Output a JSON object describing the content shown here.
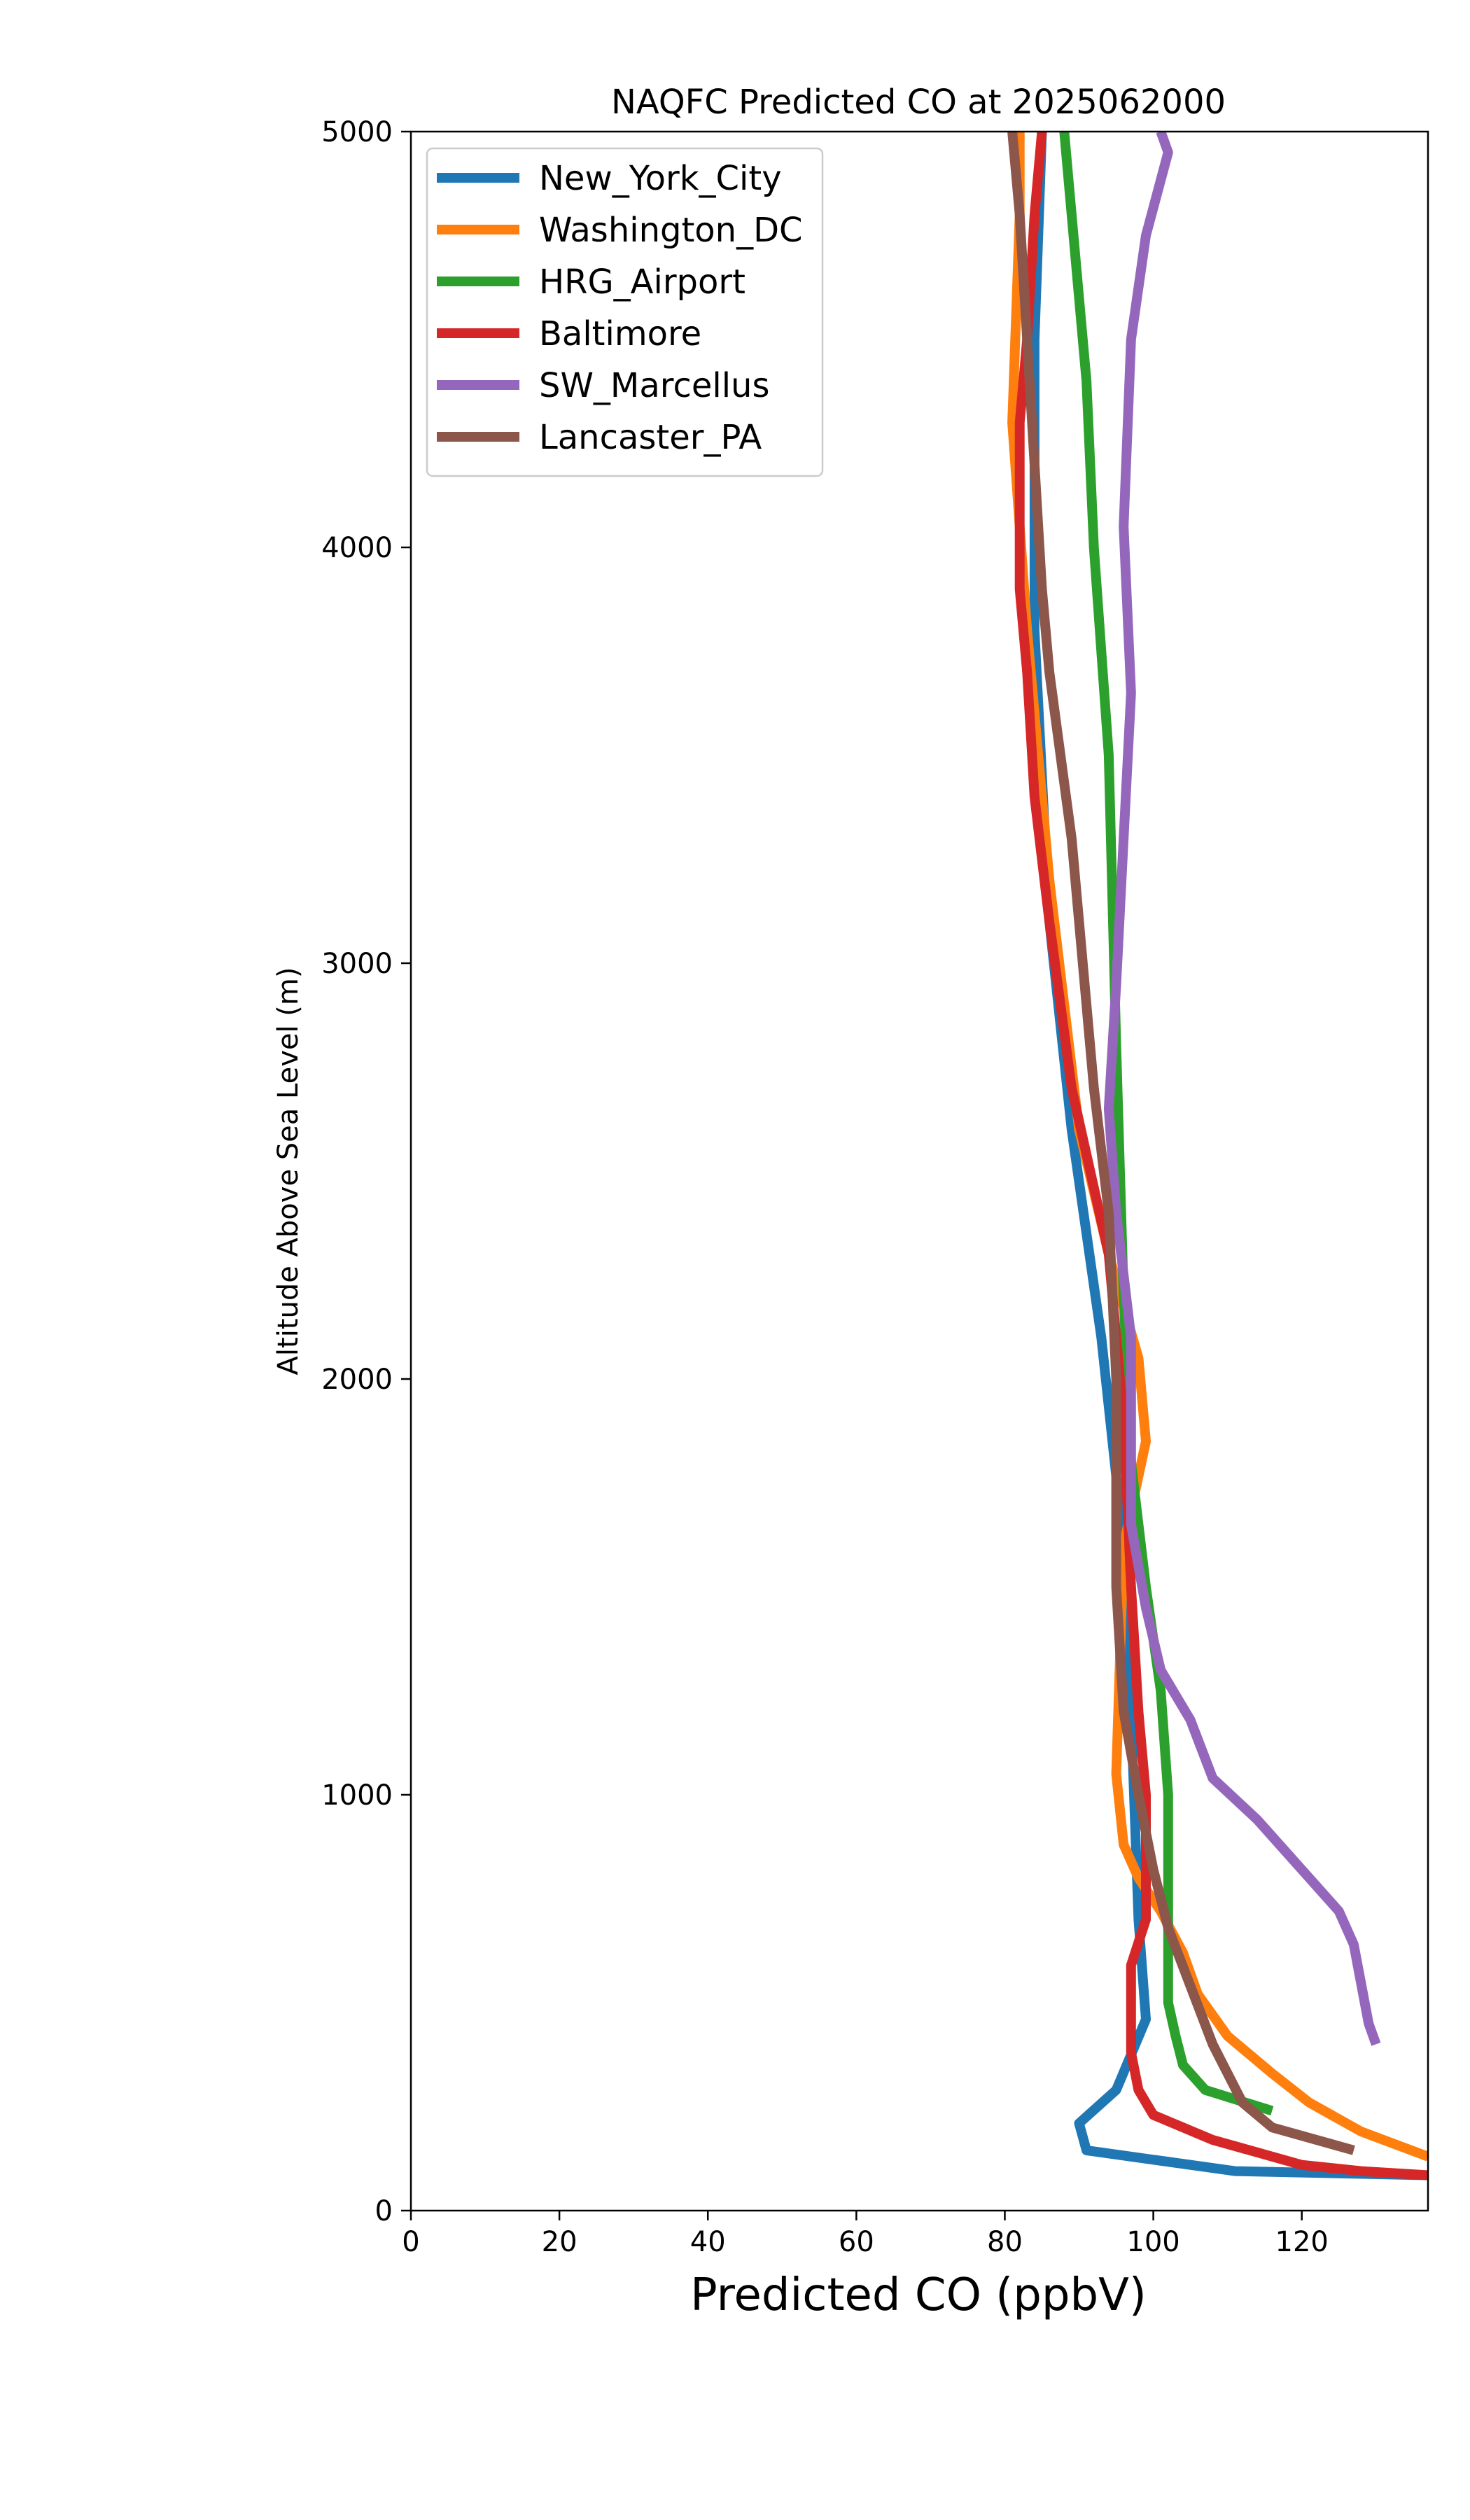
{
  "chart_data": {
    "type": "line",
    "title": "NAQFC Predicted CO at 2025062000",
    "xlabel": "Predicted CO (ppbV)",
    "ylabel": "Altitude Above Sea Level (m)",
    "xlim": [
      0,
      137
    ],
    "ylim": [
      0,
      5000
    ],
    "xticks": [
      0,
      20,
      40,
      60,
      80,
      100,
      120
    ],
    "yticks": [
      0,
      1000,
      2000,
      3000,
      4000,
      5000
    ],
    "grid": false,
    "legend_position": "top-left",
    "series": [
      {
        "name": "New_York_City",
        "color": "#1f77b4",
        "points": [
          [
            137,
            85
          ],
          [
            111,
            95
          ],
          [
            91,
            145
          ],
          [
            90,
            210
          ],
          [
            95,
            290
          ],
          [
            99,
            460
          ],
          [
            98,
            700
          ],
          [
            97,
            1200
          ],
          [
            96,
            1600
          ],
          [
            93,
            2100
          ],
          [
            89,
            2600
          ],
          [
            86,
            3100
          ],
          [
            84,
            3800
          ],
          [
            84,
            4500
          ],
          [
            85,
            5000
          ]
        ]
      },
      {
        "name": "Washington_DC",
        "color": "#ff7f0e",
        "points": [
          [
            137,
            130
          ],
          [
            128,
            190
          ],
          [
            121,
            260
          ],
          [
            116,
            330
          ],
          [
            110,
            420
          ],
          [
            106,
            520
          ],
          [
            104,
            620
          ],
          [
            101,
            720
          ],
          [
            98,
            800
          ],
          [
            96,
            880
          ],
          [
            95,
            1050
          ],
          [
            96,
            1600
          ],
          [
            99,
            1850
          ],
          [
            98,
            2050
          ],
          [
            94,
            2300
          ],
          [
            90,
            2600
          ],
          [
            86,
            3200
          ],
          [
            83,
            3800
          ],
          [
            81,
            4300
          ],
          [
            82,
            4800
          ],
          [
            82,
            5000
          ]
        ]
      },
      {
        "name": "HRG_Airport",
        "color": "#2ca02c",
        "points": [
          [
            116,
            240
          ],
          [
            107,
            290
          ],
          [
            104,
            350
          ],
          [
            103,
            420
          ],
          [
            102,
            500
          ],
          [
            102,
            700
          ],
          [
            102,
            1000
          ],
          [
            101,
            1250
          ],
          [
            99,
            1500
          ],
          [
            97,
            1800
          ],
          [
            96,
            2200
          ],
          [
            95,
            2800
          ],
          [
            94,
            3500
          ],
          [
            92,
            4000
          ],
          [
            91,
            4400
          ],
          [
            89,
            4800
          ],
          [
            88,
            5000
          ]
        ]
      },
      {
        "name": "Baltimore",
        "color": "#d62728",
        "points": [
          [
            137,
            85
          ],
          [
            128,
            95
          ],
          [
            120,
            110
          ],
          [
            108,
            170
          ],
          [
            100,
            230
          ],
          [
            98,
            290
          ],
          [
            97,
            380
          ],
          [
            97,
            480
          ],
          [
            97,
            590
          ],
          [
            99,
            700
          ],
          [
            99,
            850
          ],
          [
            99,
            1000
          ],
          [
            98,
            1200
          ],
          [
            97,
            1500
          ],
          [
            96,
            1900
          ],
          [
            94,
            2300
          ],
          [
            89,
            2700
          ],
          [
            86,
            3100
          ],
          [
            84,
            3400
          ],
          [
            83,
            3700
          ],
          [
            82,
            3900
          ],
          [
            82,
            4300
          ],
          [
            83,
            4500
          ],
          [
            84,
            4800
          ],
          [
            85,
            5000
          ]
        ]
      },
      {
        "name": "SW_Marcellus",
        "color": "#9467bd",
        "points": [
          [
            130,
            400
          ],
          [
            129,
            450
          ],
          [
            127,
            640
          ],
          [
            125,
            720
          ],
          [
            120,
            820
          ],
          [
            114,
            940
          ],
          [
            108,
            1040
          ],
          [
            105,
            1180
          ],
          [
            101,
            1300
          ],
          [
            99,
            1450
          ],
          [
            97,
            1650
          ],
          [
            97,
            1900
          ],
          [
            97,
            2100
          ],
          [
            95,
            2400
          ],
          [
            94,
            2650
          ],
          [
            95,
            2950
          ],
          [
            96,
            3300
          ],
          [
            97,
            3650
          ],
          [
            96,
            4050
          ],
          [
            97,
            4500
          ],
          [
            99,
            4750
          ],
          [
            102,
            4950
          ],
          [
            101,
            5000
          ]
        ]
      },
      {
        "name": "Lancaster_PA",
        "color": "#8c564b",
        "points": [
          [
            127,
            145
          ],
          [
            116,
            200
          ],
          [
            112,
            260
          ],
          [
            108,
            400
          ],
          [
            105,
            540
          ],
          [
            102,
            680
          ],
          [
            100,
            820
          ],
          [
            98,
            1000
          ],
          [
            96,
            1200
          ],
          [
            95,
            1500
          ],
          [
            95,
            1700
          ],
          [
            95,
            2000
          ],
          [
            94,
            2400
          ],
          [
            92,
            2700
          ],
          [
            90,
            3100
          ],
          [
            89,
            3300
          ],
          [
            86,
            3700
          ],
          [
            85,
            3900
          ],
          [
            84,
            4200
          ],
          [
            83,
            4500
          ],
          [
            82,
            4800
          ],
          [
            81,
            5000
          ]
        ]
      }
    ]
  }
}
